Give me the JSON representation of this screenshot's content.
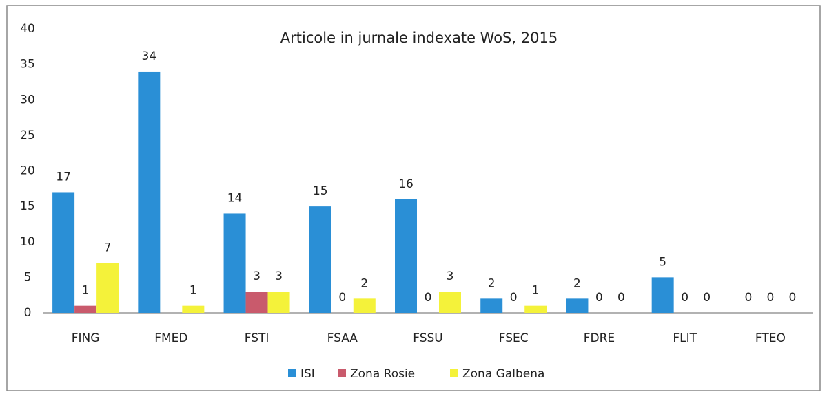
{
  "chart_data": {
    "type": "bar",
    "title": "Articole in jurnale indexate WoS, 2015",
    "categories": [
      "FING",
      "FMED",
      "FSTI",
      "FSAA",
      "FSSU",
      "FSEC",
      "FDRE",
      "FLIT",
      "FTEO"
    ],
    "series": [
      {
        "name": "ISI",
        "color": "#2a8fd6",
        "values": [
          17,
          34,
          14,
          15,
          16,
          2,
          2,
          5,
          0
        ]
      },
      {
        "name": "Zona Rosie",
        "color": "#c95a6c",
        "values": [
          1,
          null,
          3,
          0,
          0,
          0,
          0,
          0,
          0
        ]
      },
      {
        "name": "Zona Galbena",
        "color": "#f4f23a",
        "values": [
          7,
          1,
          3,
          2,
          3,
          1,
          0,
          0,
          0
        ]
      }
    ],
    "ylim": [
      0,
      40
    ],
    "yticks": [
      0,
      5,
      10,
      15,
      20,
      25,
      30,
      35,
      40
    ],
    "legend": "bottom"
  }
}
